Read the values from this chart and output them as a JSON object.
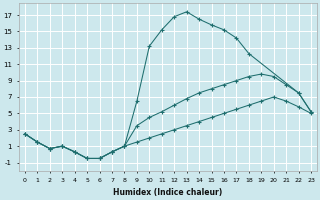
{
  "bg_color": "#cde8ed",
  "grid_color": "#ffffff",
  "line_color": "#1e6e6e",
  "xlim": [
    -0.5,
    23.5
  ],
  "ylim": [
    -2,
    18.5
  ],
  "xticks": [
    0,
    1,
    2,
    3,
    4,
    5,
    6,
    7,
    8,
    9,
    10,
    11,
    12,
    13,
    14,
    15,
    16,
    17,
    18,
    19,
    20,
    21,
    22,
    23
  ],
  "yticks": [
    -1,
    1,
    3,
    5,
    7,
    9,
    11,
    13,
    15,
    17
  ],
  "xlabel": "Humidex (Indice chaleur)",
  "line1_x": [
    0,
    1,
    2,
    3,
    4,
    5,
    6,
    7,
    8,
    9,
    10,
    11,
    12,
    13,
    14,
    15,
    16,
    17,
    18,
    19,
    20,
    21,
    22,
    23
  ],
  "line1_y": [
    2.5,
    1.5,
    0.7,
    1.0,
    0.3,
    -0.5,
    -0.5,
    0.3,
    1.0,
    6.5,
    13.2,
    15.2,
    16.8,
    17.4,
    16.5,
    15.8,
    15.2,
    14.2,
    12.3,
    null,
    null,
    null,
    null,
    null
  ],
  "line1_x2": [
    14,
    15,
    16,
    17,
    18,
    19,
    20,
    21,
    22,
    23
  ],
  "line1_y2": [
    16.5,
    15.8,
    15.2,
    14.2,
    12.3,
    null,
    null,
    null,
    null,
    null
  ],
  "line2_x": [
    0,
    1,
    2,
    3,
    4,
    5,
    6,
    7,
    8,
    9,
    10,
    11,
    12,
    13,
    14,
    15,
    16,
    17,
    18,
    19,
    20,
    21,
    22,
    23
  ],
  "line2_y": [
    2.5,
    1.5,
    0.7,
    1.0,
    0.3,
    -0.5,
    -0.5,
    0.3,
    1.0,
    3.5,
    4.5,
    5.2,
    6.0,
    6.8,
    7.5,
    8.0,
    8.5,
    9.0,
    9.5,
    9.8,
    9.5,
    8.5,
    7.5,
    5.2
  ],
  "line3_x": [
    0,
    1,
    2,
    3,
    4,
    5,
    6,
    7,
    8,
    9,
    10,
    11,
    12,
    13,
    14,
    15,
    16,
    17,
    18,
    19,
    20,
    21,
    22,
    23
  ],
  "line3_y": [
    2.5,
    1.5,
    0.7,
    1.0,
    0.3,
    -0.5,
    -0.5,
    0.3,
    1.0,
    1.5,
    2.0,
    2.5,
    3.0,
    3.5,
    4.0,
    4.5,
    5.0,
    5.5,
    6.0,
    6.5,
    7.0,
    6.5,
    5.8,
    5.0
  ],
  "line1_full_x": [
    0,
    1,
    2,
    3,
    4,
    5,
    6,
    7,
    8,
    9,
    10,
    11,
    12,
    13,
    14,
    15,
    16,
    17,
    18,
    22,
    23
  ],
  "line1_full_y": [
    2.5,
    1.5,
    0.7,
    1.0,
    0.3,
    -0.5,
    -0.5,
    0.3,
    1.0,
    6.5,
    13.2,
    15.2,
    16.8,
    17.4,
    16.5,
    15.8,
    15.2,
    14.2,
    12.3,
    7.5,
    5.2
  ]
}
